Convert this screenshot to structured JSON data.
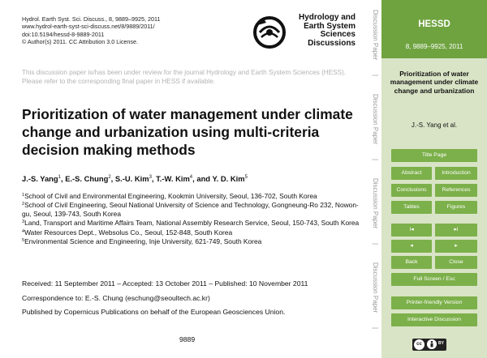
{
  "header": {
    "citation_lines": [
      "Hydrol. Earth Syst. Sci. Discuss., 8, 9889–9925, 2011",
      "www.hydrol-earth-syst-sci-discuss.net/8/9889/2011/",
      "doi:10.5194/hessd-8-9889-2011",
      "© Author(s) 2011. CC Attribution 3.0 License."
    ],
    "logo_lines": [
      "Hydrology and",
      "Earth System",
      "Sciences",
      "Discussions"
    ]
  },
  "notice": "This discussion paper is/has been under review for the journal Hydrology and Earth System Sciences (HESS). Please refer to the corresponding final paper in HESS if available.",
  "paper": {
    "title": "Prioritization of water management under climate change and urbanization using multi-criteria decision making methods",
    "authors": [
      {
        "name": "J.-S. Yang",
        "sup": "1"
      },
      {
        "name": "E.-S. Chung",
        "sup": "2"
      },
      {
        "name": "S.-U. Kim",
        "sup": "3"
      },
      {
        "name": "T.-W. Kim",
        "sup": "4"
      },
      {
        "name": "Y. D. Kim",
        "sup": "5"
      }
    ],
    "author_separators": [
      ", ",
      ", ",
      ", ",
      ", and "
    ],
    "affiliations": [
      {
        "sup": "1",
        "text": "School of Civil and Environmental Engineering, Kookmin University, Seoul, 136-702, South Korea"
      },
      {
        "sup": "2",
        "text": "School of Civil Engineering, Seoul National University of Science and Technology, Gongneung-Ro 232, Nowon-gu, Seoul, 139-743, South Korea"
      },
      {
        "sup": "3",
        "text": "Land, Transport and Maritime Affairs Team, National Assembly Research Service, Seoul, 150-743, South Korea"
      },
      {
        "sup": "4",
        "text": "Water Resources Dept., Websolus Co., Seoul, 152-848, South Korea"
      },
      {
        "sup": "5",
        "text": "Environmental Science and Engineering, Inje University, 621-749, South Korea"
      }
    ],
    "dates": "Received: 11 September 2011 – Accepted: 13 October 2011 – Published: 10 November 2011",
    "correspondence": "Correspondence to: E.-S. Chung (eschung@seoultech.ac.kr)",
    "publisher": "Published by Copernicus Publications on behalf of the European Geosciences Union.",
    "page_number": "9889"
  },
  "strip": {
    "label": "Discussion Paper",
    "separator": "|"
  },
  "sidebar": {
    "journal": "HESSD",
    "volume": "8, 9889–9925, 2011",
    "short_title": "Prioritization of water management under climate change and urbanization",
    "authors": "J.-S. Yang et al.",
    "buttons": {
      "title_page": "Title Page",
      "abstract": "Abstract",
      "introduction": "Introduction",
      "conclusions": "Conclusions",
      "references": "References",
      "tables": "Tables",
      "figures": "Figures",
      "first": "I◂",
      "last": "▸I",
      "prev": "◂",
      "next": "▸",
      "back": "Back",
      "close": "Close",
      "full_screen": "Full Screen / Esc",
      "printer": "Printer-friendly Version",
      "discussion": "Interactive Discussion"
    },
    "license_badge": "BY"
  },
  "colors": {
    "sidebar_head": "#6fa340",
    "sidebar_bg": "#d9e4c6",
    "button": "#7cb04a",
    "notice_text": "#b3b3b3"
  }
}
